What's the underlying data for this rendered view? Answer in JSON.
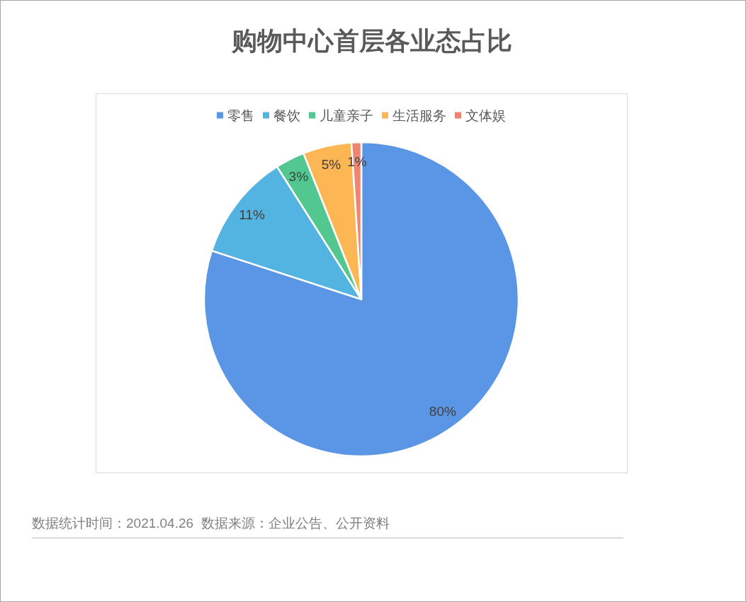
{
  "chart_data": {
    "type": "pie",
    "title": "购物中心首层各业态占比",
    "categories": [
      "零售",
      "餐饮",
      "儿童亲子",
      "生活服务",
      "文体娱"
    ],
    "values": [
      80,
      11,
      3,
      5,
      1
    ],
    "colors": [
      "#5b95e5",
      "#53b3e1",
      "#52c78f",
      "#fdb654",
      "#ee8472"
    ],
    "value_labels": [
      "80%",
      "11%",
      "3%",
      "5%",
      "1%"
    ],
    "legend": "top",
    "annotations": [
      "数据统计时间：2021.04.26  数据来源：企业公告、公开资料"
    ]
  }
}
